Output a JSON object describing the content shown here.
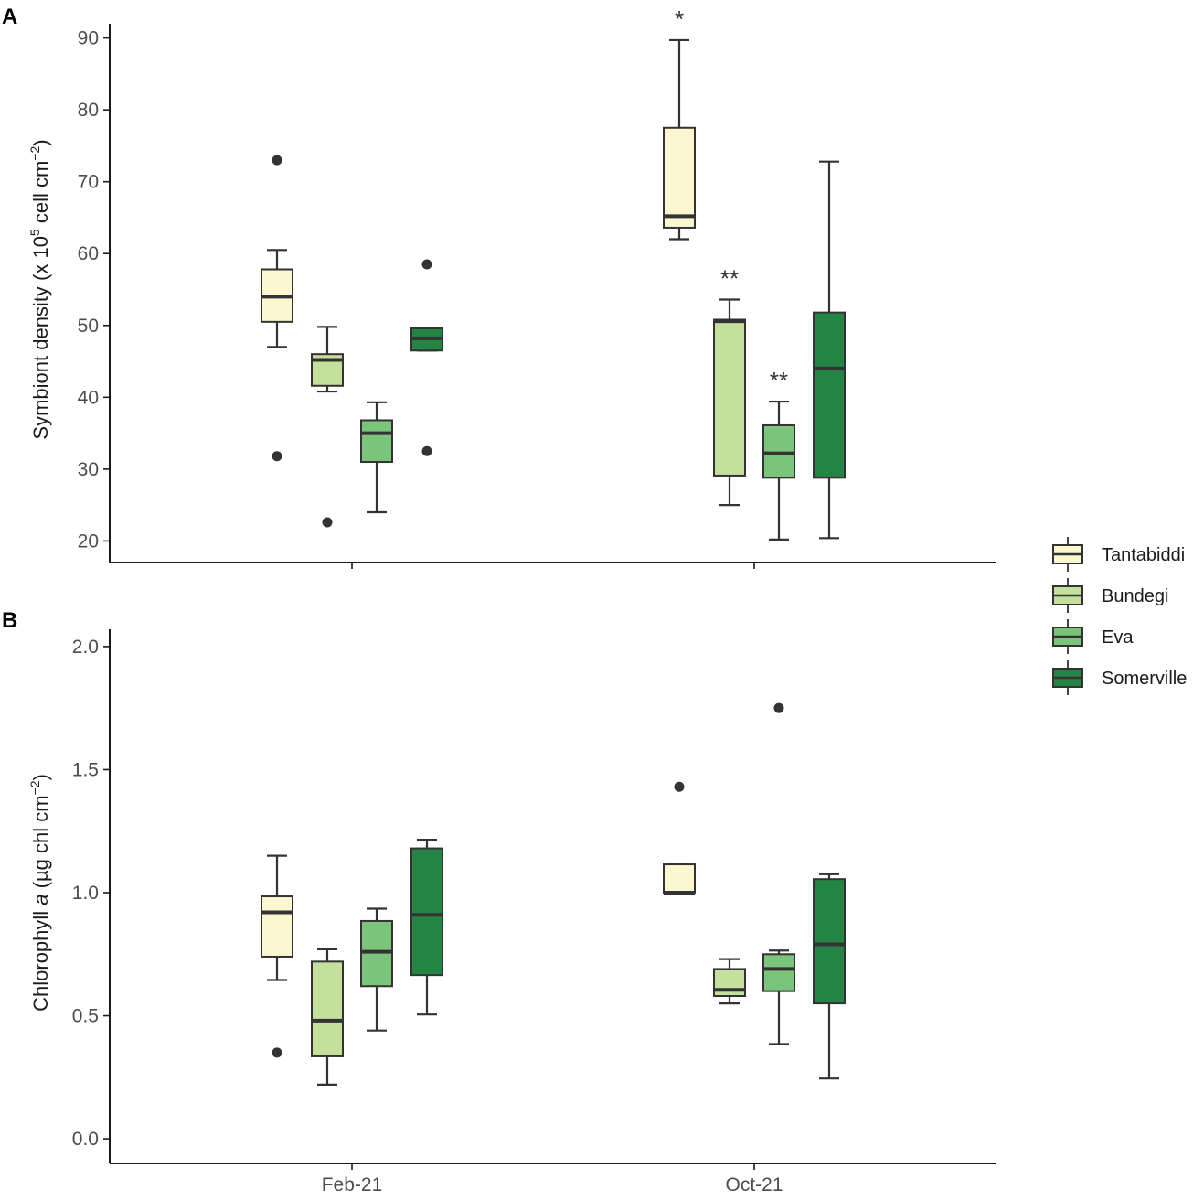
{
  "chart_data": [
    {
      "type": "box",
      "panel": "A",
      "ylabel": "Symbiont density (x 10",
      "ylabel_sup": "5",
      "ylabel_mid": " cell cm",
      "ylabel_sup2": "−2",
      "ylabel_end": ")",
      "ylim": [
        17,
        93
      ],
      "yticks": [
        20,
        30,
        40,
        50,
        60,
        70,
        80,
        90
      ],
      "categories": [
        "Feb-21",
        "Oct-21"
      ],
      "boxes": [
        {
          "category": "Feb-21",
          "site": "Tantabiddi",
          "min": 47,
          "q1": 50.5,
          "median": 54,
          "q3": 57.8,
          "max": 60.5,
          "outliers": [
            73,
            31.8
          ],
          "sig": ""
        },
        {
          "category": "Feb-21",
          "site": "Bundegi",
          "min": 40.8,
          "q1": 41.6,
          "median": 45.2,
          "q3": 46,
          "max": 49.8,
          "outliers": [
            22.6
          ],
          "sig": ""
        },
        {
          "category": "Feb-21",
          "site": "Eva",
          "min": 24,
          "q1": 31,
          "median": 35,
          "q3": 36.8,
          "max": 39.3,
          "outliers": [],
          "sig": ""
        },
        {
          "category": "Feb-21",
          "site": "Somerville",
          "min": 46.5,
          "q1": 46.5,
          "median": 48.2,
          "q3": 49.6,
          "max": 49.6,
          "outliers": [
            58.5,
            32.5
          ],
          "sig": ""
        },
        {
          "category": "Oct-21",
          "site": "Tantabiddi",
          "min": 62,
          "q1": 63.6,
          "median": 65.2,
          "q3": 77.5,
          "max": 89.7,
          "outliers": [],
          "sig": "*"
        },
        {
          "category": "Oct-21",
          "site": "Bundegi",
          "min": 25,
          "q1": 29.1,
          "median": 50.6,
          "q3": 50.8,
          "max": 53.6,
          "outliers": [],
          "sig": "**"
        },
        {
          "category": "Oct-21",
          "site": "Eva",
          "min": 20.2,
          "q1": 28.8,
          "median": 32.2,
          "q3": 36.1,
          "max": 39.4,
          "outliers": [],
          "sig": "**"
        },
        {
          "category": "Oct-21",
          "site": "Somerville",
          "min": 20.4,
          "q1": 28.8,
          "median": 44,
          "q3": 51.8,
          "max": 72.8,
          "outliers": [],
          "sig": ""
        }
      ]
    },
    {
      "type": "box",
      "panel": "B",
      "ylabel": "Chlorophyll ",
      "ylabel_it": "a",
      "ylabel_mid": " (µg chl cm",
      "ylabel_sup2": "−2",
      "ylabel_end": ")",
      "ylim": [
        -0.1,
        2.1
      ],
      "yticks": [
        0.0,
        0.5,
        1.0,
        1.5,
        2.0
      ],
      "ytick_labels": [
        "0.0",
        "0.5",
        "1.0",
        "1.5",
        "2.0"
      ],
      "categories": [
        "Feb-21",
        "Oct-21"
      ],
      "boxes": [
        {
          "category": "Feb-21",
          "site": "Tantabiddi",
          "min": 0.645,
          "q1": 0.74,
          "median": 0.92,
          "q3": 0.985,
          "max": 1.15,
          "outliers": [
            0.35
          ],
          "sig": ""
        },
        {
          "category": "Feb-21",
          "site": "Bundegi",
          "min": 0.22,
          "q1": 0.335,
          "median": 0.48,
          "q3": 0.72,
          "max": 0.77,
          "outliers": [],
          "sig": ""
        },
        {
          "category": "Feb-21",
          "site": "Eva",
          "min": 0.44,
          "q1": 0.62,
          "median": 0.76,
          "q3": 0.885,
          "max": 0.935,
          "outliers": [],
          "sig": ""
        },
        {
          "category": "Feb-21",
          "site": "Somerville",
          "min": 0.505,
          "q1": 0.665,
          "median": 0.91,
          "q3": 1.18,
          "max": 1.215,
          "outliers": [],
          "sig": ""
        },
        {
          "category": "Oct-21",
          "site": "Tantabiddi",
          "min": 1.0,
          "q1": 1.0,
          "median": 1.0,
          "q3": 1.115,
          "max": 1.115,
          "outliers": [
            1.43
          ],
          "sig": ""
        },
        {
          "category": "Oct-21",
          "site": "Bundegi",
          "min": 0.55,
          "q1": 0.58,
          "median": 0.605,
          "q3": 0.69,
          "max": 0.73,
          "outliers": [],
          "sig": ""
        },
        {
          "category": "Oct-21",
          "site": "Eva",
          "min": 0.385,
          "q1": 0.6,
          "median": 0.69,
          "q3": 0.75,
          "max": 0.765,
          "outliers": [
            1.75
          ],
          "sig": ""
        },
        {
          "category": "Oct-21",
          "site": "Somerville",
          "min": 0.245,
          "q1": 0.55,
          "median": 0.79,
          "q3": 1.055,
          "max": 1.075,
          "outliers": [],
          "sig": ""
        }
      ]
    }
  ],
  "legend": {
    "position": "right",
    "entries": [
      {
        "label": "Tantabiddi",
        "color": "#fcf7d0"
      },
      {
        "label": "Bundegi",
        "color": "#c4e09c"
      },
      {
        "label": "Eva",
        "color": "#7bc47c"
      },
      {
        "label": "Somerville",
        "color": "#238443"
      }
    ]
  },
  "colors": {
    "Tantabiddi": "#fcf7d0",
    "Bundegi": "#c4e09c",
    "Eva": "#7bc47c",
    "Somerville": "#238443",
    "outline": "#333333",
    "axis": "#1a1a1a"
  }
}
